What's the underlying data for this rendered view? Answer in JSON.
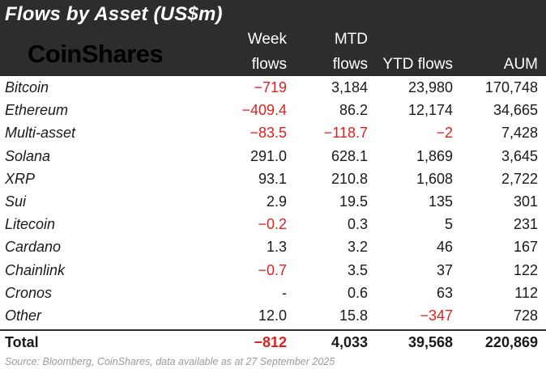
{
  "title": "Flows by Asset (US$m)",
  "logo": "CoinShares",
  "columns": {
    "week": [
      "Week",
      "flows"
    ],
    "mtd": [
      "MTD",
      "flows"
    ],
    "ytd": "YTD flows",
    "aum": "AUM"
  },
  "rows": [
    {
      "name": "Bitcoin",
      "week": "-719",
      "mtd": "3,184",
      "ytd": "23,980",
      "aum": "170,748"
    },
    {
      "name": "Ethereum",
      "week": "-409.4",
      "mtd": "86.2",
      "ytd": "12,174",
      "aum": "34,665"
    },
    {
      "name": "Multi-asset",
      "week": "-83.5",
      "mtd": "-118.7",
      "ytd": "-2",
      "aum": "7,428"
    },
    {
      "name": "Solana",
      "week": "291.0",
      "mtd": "628.1",
      "ytd": "1,869",
      "aum": "3,645"
    },
    {
      "name": "XRP",
      "week": "93.1",
      "mtd": "210.8",
      "ytd": "1,608",
      "aum": "2,722"
    },
    {
      "name": "Sui",
      "week": "2.9",
      "mtd": "19.5",
      "ytd": "135",
      "aum": "301"
    },
    {
      "name": "Litecoin",
      "week": "-0.2",
      "mtd": "0.3",
      "ytd": "5",
      "aum": "231"
    },
    {
      "name": "Cardano",
      "week": "1.3",
      "mtd": "3.2",
      "ytd": "46",
      "aum": "167"
    },
    {
      "name": "Chainlink",
      "week": "-0.7",
      "mtd": "3.5",
      "ytd": "37",
      "aum": "122"
    },
    {
      "name": "Cronos",
      "week": "-",
      "mtd": "0.6",
      "ytd": "63",
      "aum": "112"
    },
    {
      "name": "Other",
      "week": "12.0",
      "mtd": "15.8",
      "ytd": "-347",
      "aum": "728"
    }
  ],
  "total": {
    "name": "Total",
    "week": "-812",
    "mtd": "4,033",
    "ytd": "39,568",
    "aum": "220,869"
  },
  "source": "Source: Bloomberg, CoinShares, data available as at 27 September 2025",
  "colors": {
    "header_bg": "#2d2d2d",
    "negative": "#e02020"
  }
}
